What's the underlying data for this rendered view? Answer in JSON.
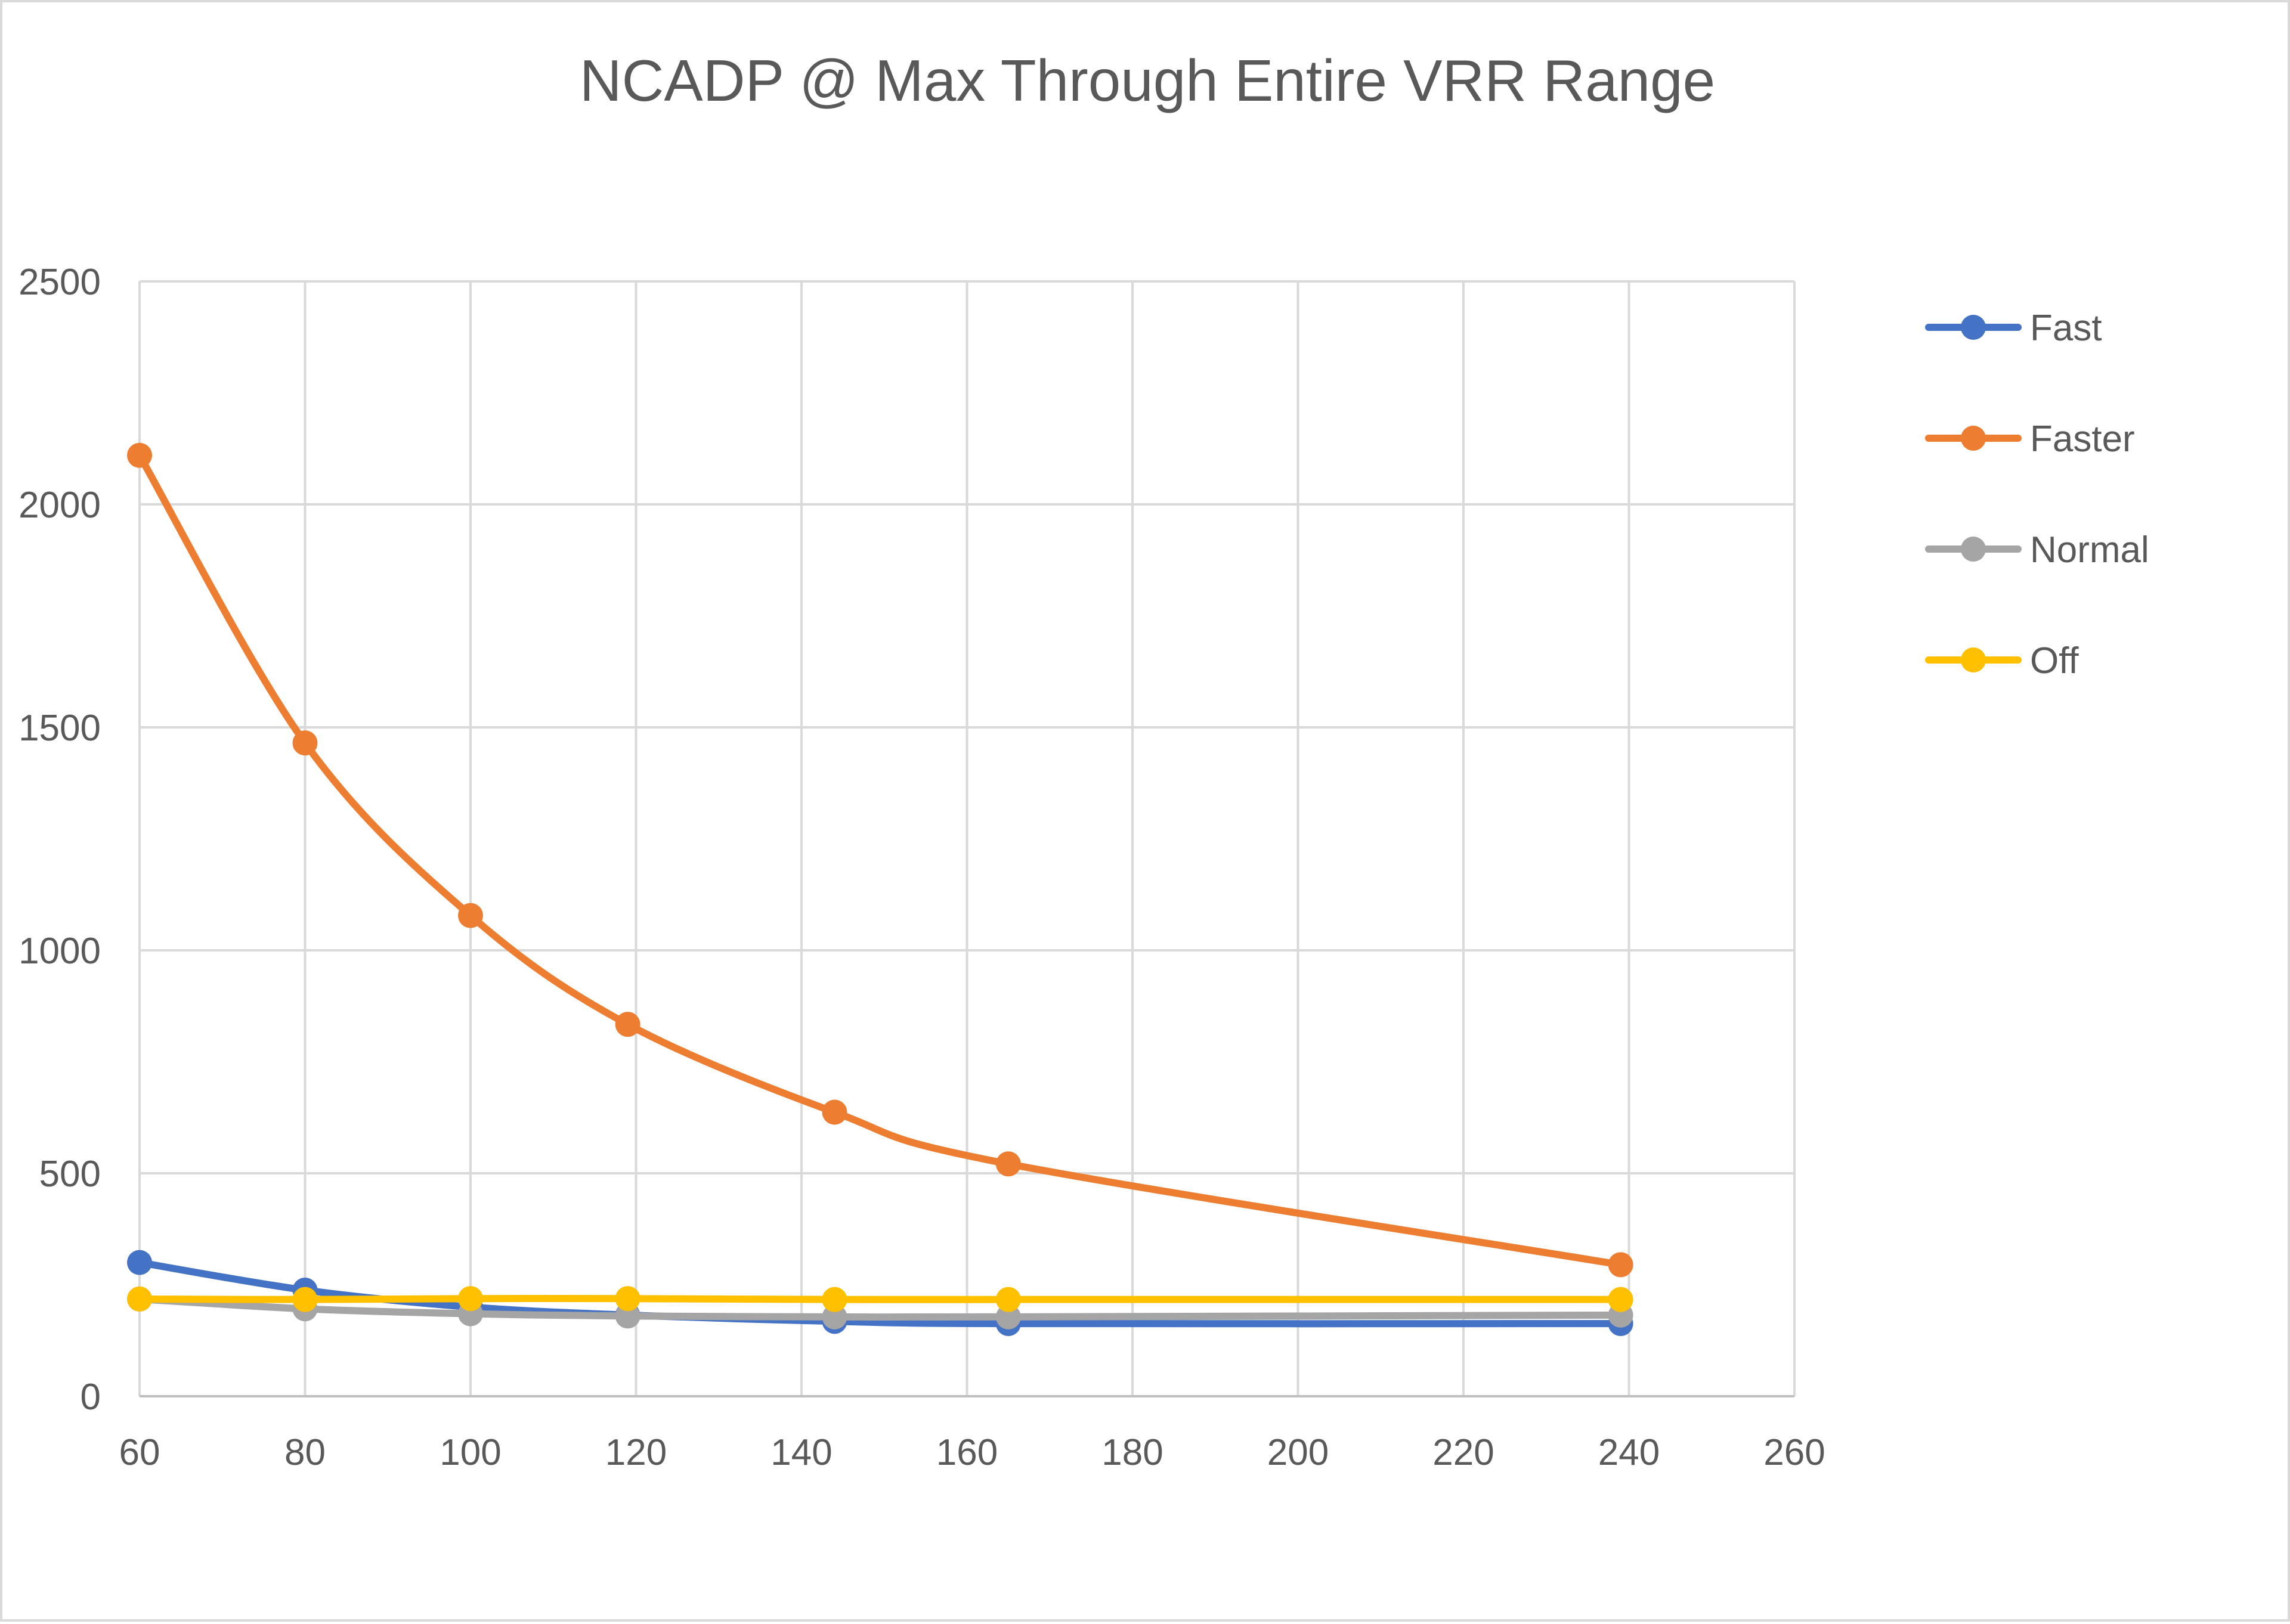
{
  "chart_data": {
    "type": "line",
    "title": "NCADP @ Max Through Entire VRR Range",
    "xlabel": "",
    "ylabel": "",
    "xlim": [
      60,
      260
    ],
    "ylim": [
      0,
      2500
    ],
    "x_ticks": [
      60,
      80,
      100,
      120,
      140,
      160,
      180,
      200,
      220,
      240,
      260
    ],
    "y_ticks": [
      0,
      500,
      1000,
      1500,
      2000,
      2500
    ],
    "grid": true,
    "smooth": true,
    "legend_position": "right",
    "x": [
      60,
      80,
      100,
      119,
      144,
      165,
      239
    ],
    "series": [
      {
        "name": "Fast",
        "color": "#4472c4",
        "values": [
          300,
          238,
          200,
          182,
          168,
          163,
          163
        ]
      },
      {
        "name": "Faster",
        "color": "#ed7d31",
        "values": [
          2110,
          1465,
          1078,
          834,
          637,
          521,
          295
        ]
      },
      {
        "name": "Normal",
        "color": "#a5a5a5",
        "values": [
          218,
          196,
          185,
          180,
          178,
          178,
          182
        ]
      },
      {
        "name": "Off",
        "color": "#ffc000",
        "values": [
          218,
          217,
          219,
          219,
          217,
          217,
          217
        ]
      }
    ]
  }
}
